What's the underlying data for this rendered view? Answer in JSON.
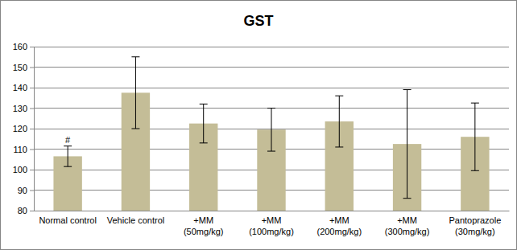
{
  "chart_data": {
    "type": "bar",
    "title": "GST",
    "categories": [
      "Normal control",
      "Vehicle control",
      "+MM\n(50mg/kg)",
      "+MM\n(100mg/kg)",
      "+MM\n(200mg/kg)",
      "+MM\n(300mg/kg)",
      "Pantoprazole\n(30mg/kg)"
    ],
    "values": [
      106.5,
      137.5,
      122.5,
      119.5,
      123.5,
      112.5,
      116
    ],
    "errors": [
      5,
      17.5,
      9.5,
      10.5,
      12.5,
      26.5,
      16.5
    ],
    "color": "#c4bd97",
    "ylim": [
      80,
      160
    ],
    "yticks": [
      80,
      90,
      100,
      110,
      120,
      130,
      140,
      150,
      160
    ],
    "grid": true,
    "annotations": [
      {
        "text": "#",
        "category": "Normal control"
      }
    ]
  }
}
